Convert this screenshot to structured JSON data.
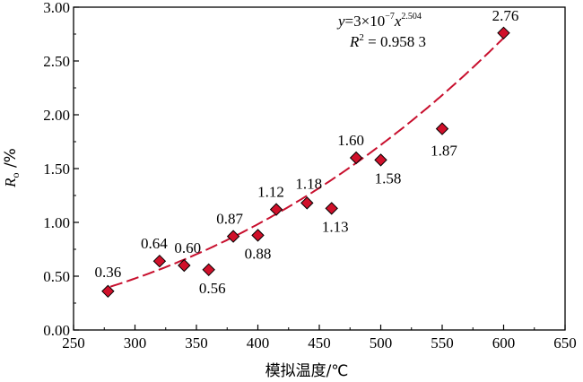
{
  "chart_data": {
    "type": "scatter",
    "xlabel": "模拟温度/℃",
    "ylabel": {
      "main": "R",
      "sub": "o",
      "unit": " /%"
    },
    "xlim": [
      250,
      650
    ],
    "ylim": [
      0,
      3
    ],
    "xticks": [
      250,
      300,
      350,
      400,
      450,
      500,
      550,
      600,
      650
    ],
    "yticks": [
      "0.00",
      "0.50",
      "1.00",
      "1.50",
      "2.00",
      "2.50",
      "3.00"
    ],
    "grid": false,
    "points": [
      {
        "x": 278,
        "y": 0.36,
        "label": "0.36"
      },
      {
        "x": 320,
        "y": 0.64,
        "label": "0.64"
      },
      {
        "x": 340,
        "y": 0.6,
        "label": "0.60"
      },
      {
        "x": 360,
        "y": 0.56,
        "label": "0.56"
      },
      {
        "x": 380,
        "y": 0.87,
        "label": "0.87"
      },
      {
        "x": 400,
        "y": 0.88,
        "label": "0.88"
      },
      {
        "x": 415,
        "y": 1.12,
        "label": "1.12"
      },
      {
        "x": 440,
        "y": 1.18,
        "label": "1.18"
      },
      {
        "x": 460,
        "y": 1.13,
        "label": "1.13"
      },
      {
        "x": 480,
        "y": 1.6,
        "label": "1.60"
      },
      {
        "x": 500,
        "y": 1.58,
        "label": "1.58"
      },
      {
        "x": 550,
        "y": 1.87,
        "label": "1.87"
      },
      {
        "x": 600,
        "y": 2.76,
        "label": "2.76"
      }
    ],
    "trendline": {
      "type": "power",
      "coefficient": 3e-07,
      "exponent": 2.504,
      "x_range": [
        280,
        600
      ],
      "equation": {
        "y": "y",
        "eq": "=3×10",
        "exp1": "−7",
        "x": "x",
        "exp2": "2.504"
      },
      "r2": {
        "label": "R",
        "sup": "2",
        "value": " = 0.958 3"
      }
    },
    "colors": {
      "marker_fill": "#d0102a",
      "marker_stroke": "#000000",
      "trendline": "#c8102e"
    }
  }
}
